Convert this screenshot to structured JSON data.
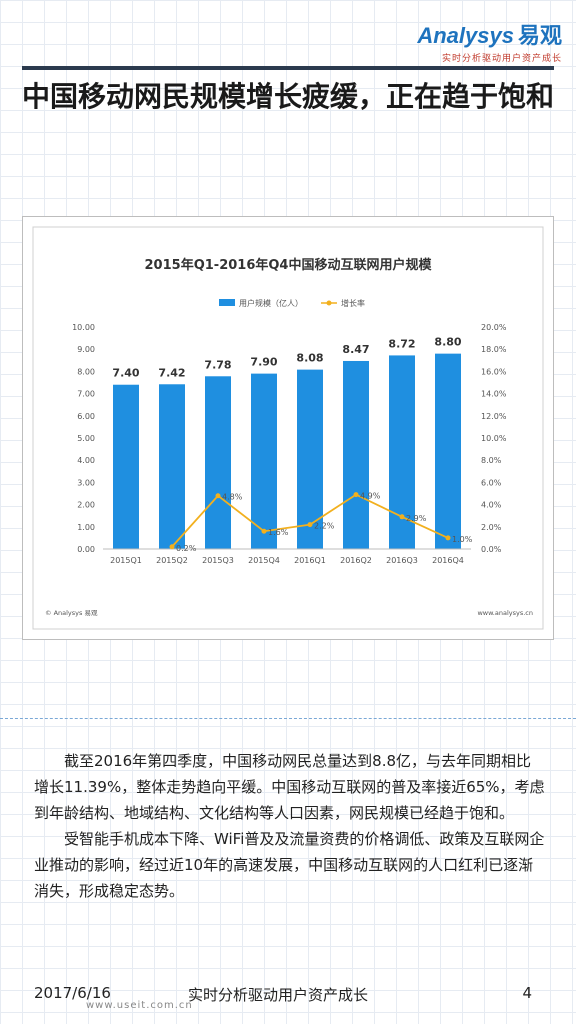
{
  "logo": {
    "brand_en": "Analysys",
    "brand_cn": "易观",
    "tagline": "实时分析驱动用户资产成长"
  },
  "title": "中国移动网民规模增长疲缓，正在趋于饱和",
  "chart_data": {
    "type": "bar",
    "title": "2015年Q1-2016年Q4中国移动互联网用户规模",
    "categories": [
      "2015Q1",
      "2015Q2",
      "2015Q3",
      "2015Q4",
      "2016Q1",
      "2016Q2",
      "2016Q3",
      "2016Q4"
    ],
    "series": [
      {
        "name": "用户规模（亿人）",
        "type": "bar",
        "axis": "left",
        "values": [
          7.4,
          7.42,
          7.78,
          7.9,
          8.08,
          8.47,
          8.72,
          8.8
        ],
        "labels": [
          "7.40",
          "7.42",
          "7.78",
          "7.90",
          "8.08",
          "8.47",
          "8.72",
          "8.80"
        ]
      },
      {
        "name": "增长率",
        "type": "line",
        "axis": "right",
        "values": [
          null,
          0.2,
          4.8,
          1.6,
          2.2,
          4.9,
          2.9,
          1.0
        ],
        "labels": [
          "",
          "0.2%",
          "4.8%",
          "1.6%",
          "2.2%",
          "4.9%",
          "2.9%",
          "1.0%"
        ]
      }
    ],
    "y_left": {
      "ylim": [
        0,
        10
      ],
      "ticks": [
        "0.00",
        "1.00",
        "2.00",
        "3.00",
        "4.00",
        "5.00",
        "6.00",
        "7.00",
        "8.00",
        "9.00",
        "10.00"
      ]
    },
    "y_right": {
      "ylim": [
        0,
        20
      ],
      "ticks": [
        "0.0%",
        "2.0%",
        "4.0%",
        "6.0%",
        "8.0%",
        "10.0%",
        "12.0%",
        "14.0%",
        "16.0%",
        "18.0%",
        "20.0%"
      ]
    },
    "legend_position": "top-center",
    "grid": false,
    "colors": {
      "bar": "#1f8fe0",
      "line": "#f2b01e"
    },
    "source_left": "© Analysys 易观",
    "source_right": "www.analysys.cn"
  },
  "body": {
    "p1": "截至2016年第四季度，中国移动网民总量达到8.8亿，与去年同期相比增长11.39%，整体走势趋向平缓。中国移动互联网的普及率接近65%，考虑到年龄结构、地域结构、文化结构等人口因素，网民规模已经趋于饱和。",
    "p2": "受智能手机成本下降、WiFi普及及流量资费的价格调低、政策及互联网企业推动的影响，经过近10年的高速发展，中国移动互联网的人口红利已逐渐消失，形成稳定态势。"
  },
  "footer": {
    "date": "2017/6/16",
    "slogan": "实时分析驱动用户资产成长",
    "page": "4",
    "watermark": "www.useit.com.cn"
  }
}
